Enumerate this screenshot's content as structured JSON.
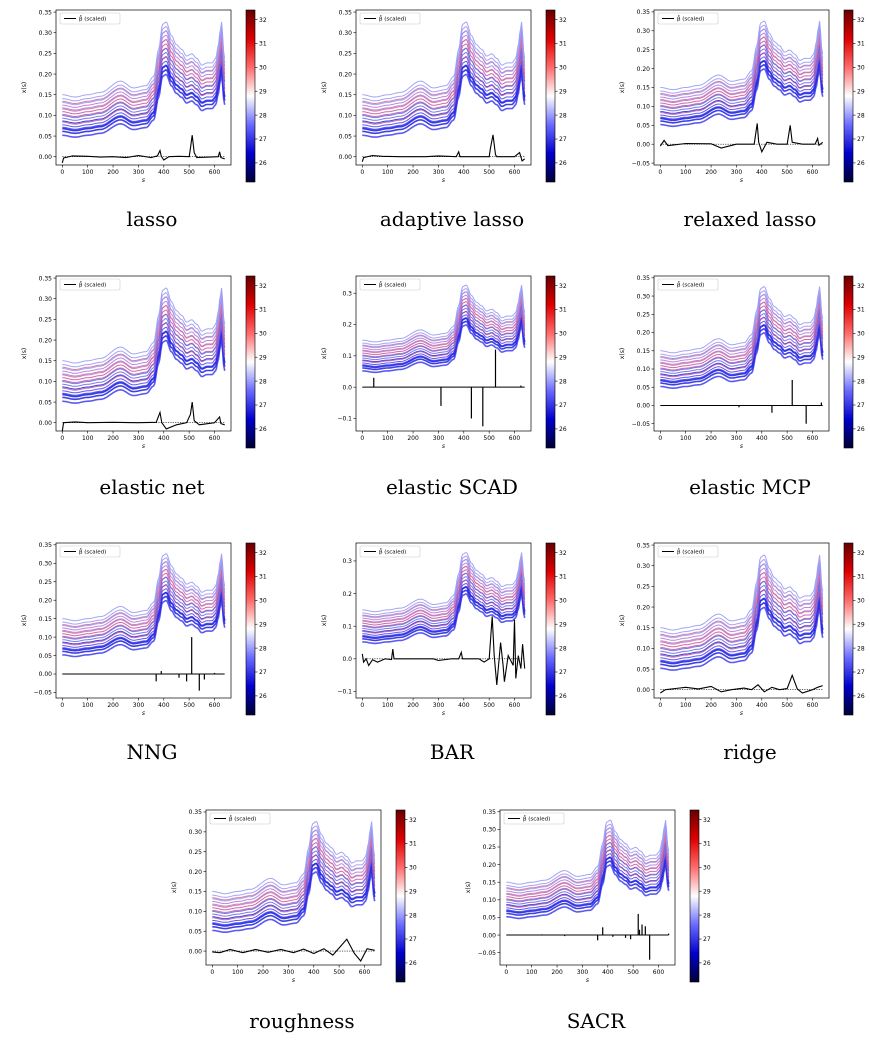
{
  "figure": {
    "colorbar": {
      "ticks": [
        26,
        27,
        28,
        29,
        30,
        31,
        32
      ],
      "min": 25.2,
      "max": 32.4,
      "colors": [
        "#000033",
        "#0000cc",
        "#6b6bff",
        "#ffffff",
        "#ff6b6b",
        "#dd0000",
        "#660000"
      ]
    },
    "common": {
      "xlabel": "s",
      "ylabel": "x(s)",
      "legend": "β̂ (scaled)",
      "xticks": [
        0,
        100,
        200,
        300,
        400,
        500,
        600
      ],
      "xlim": [
        -25,
        665
      ]
    }
  },
  "chart_data": [
    {
      "type": "line",
      "name": "lasso",
      "ylim": [
        -0.02,
        0.355
      ],
      "yticks": [
        0.0,
        0.05,
        0.1,
        0.15,
        0.2,
        0.25,
        0.3,
        0.35
      ],
      "ytick_labels": [
        "0.00",
        "0.05",
        "0.10",
        "0.15",
        "0.20",
        "0.25",
        "0.30",
        "0.35"
      ],
      "beta_style": "smooth",
      "beta": [
        [
          0,
          -0.015
        ],
        [
          5,
          -0.003
        ],
        [
          40,
          0.002
        ],
        [
          100,
          0.001
        ],
        [
          150,
          -0.001
        ],
        [
          200,
          0.0
        ],
        [
          250,
          -0.002
        ],
        [
          300,
          0.003
        ],
        [
          350,
          -0.002
        ],
        [
          375,
          0.002
        ],
        [
          385,
          0.015
        ],
        [
          390,
          0.001
        ],
        [
          400,
          -0.008
        ],
        [
          420,
          0.0
        ],
        [
          460,
          0.001
        ],
        [
          500,
          0.0
        ],
        [
          505,
          0.02
        ],
        [
          512,
          0.052
        ],
        [
          520,
          0.01
        ],
        [
          530,
          -0.002
        ],
        [
          580,
          -0.001
        ],
        [
          615,
          0.0
        ],
        [
          620,
          0.012
        ],
        [
          625,
          -0.002
        ],
        [
          640,
          -0.005
        ]
      ]
    },
    {
      "type": "line",
      "name": "adaptive lasso",
      "ylim": [
        -0.02,
        0.355
      ],
      "yticks": [
        0.0,
        0.05,
        0.1,
        0.15,
        0.2,
        0.25,
        0.3,
        0.35
      ],
      "ytick_labels": [
        "0.00",
        "0.05",
        "0.10",
        "0.15",
        "0.20",
        "0.25",
        "0.30",
        "0.35"
      ],
      "beta_style": "smooth",
      "beta": [
        [
          0,
          -0.012
        ],
        [
          5,
          -0.002
        ],
        [
          40,
          0.003
        ],
        [
          80,
          0.001
        ],
        [
          150,
          0.0
        ],
        [
          250,
          0.0
        ],
        [
          300,
          0.002
        ],
        [
          370,
          0.0
        ],
        [
          380,
          0.012
        ],
        [
          385,
          0.0
        ],
        [
          420,
          0.0
        ],
        [
          500,
          0.0
        ],
        [
          505,
          0.02
        ],
        [
          515,
          0.053
        ],
        [
          525,
          0.005
        ],
        [
          530,
          0.0
        ],
        [
          600,
          0.0
        ],
        [
          620,
          0.01
        ],
        [
          630,
          -0.01
        ],
        [
          640,
          -0.005
        ]
      ]
    },
    {
      "type": "line",
      "name": "relaxed lasso",
      "ylim": [
        -0.055,
        0.355
      ],
      "yticks": [
        -0.05,
        0.0,
        0.05,
        0.1,
        0.15,
        0.2,
        0.25,
        0.3,
        0.35
      ],
      "ytick_labels": [
        "−0.05",
        "0.00",
        "0.05",
        "0.10",
        "0.15",
        "0.20",
        "0.25",
        "0.30",
        "0.35"
      ],
      "beta_style": "smooth",
      "beta": [
        [
          0,
          -0.005
        ],
        [
          15,
          0.01
        ],
        [
          30,
          -0.004
        ],
        [
          100,
          0.002
        ],
        [
          200,
          0.001
        ],
        [
          240,
          -0.01
        ],
        [
          300,
          0.0
        ],
        [
          370,
          0.0
        ],
        [
          382,
          0.055
        ],
        [
          388,
          0.005
        ],
        [
          400,
          -0.02
        ],
        [
          420,
          0.005
        ],
        [
          460,
          0.0
        ],
        [
          500,
          0.0
        ],
        [
          505,
          0.02
        ],
        [
          512,
          0.05
        ],
        [
          520,
          0.005
        ],
        [
          560,
          0.0
        ],
        [
          610,
          0.0
        ],
        [
          620,
          0.015
        ],
        [
          625,
          -0.003
        ],
        [
          640,
          0.005
        ]
      ]
    },
    {
      "type": "line",
      "name": "elastic net",
      "ylim": [
        -0.02,
        0.355
      ],
      "yticks": [
        0.0,
        0.05,
        0.1,
        0.15,
        0.2,
        0.25,
        0.3,
        0.35
      ],
      "ytick_labels": [
        "0.00",
        "0.05",
        "0.10",
        "0.15",
        "0.20",
        "0.25",
        "0.30",
        "0.35"
      ],
      "beta_style": "smooth",
      "beta": [
        [
          0,
          -0.02
        ],
        [
          5,
          0.0
        ],
        [
          50,
          0.002
        ],
        [
          100,
          0.0
        ],
        [
          200,
          0.001
        ],
        [
          300,
          0.0
        ],
        [
          370,
          0.001
        ],
        [
          385,
          0.025
        ],
        [
          392,
          0.0
        ],
        [
          410,
          -0.015
        ],
        [
          450,
          -0.005
        ],
        [
          490,
          0.0
        ],
        [
          505,
          0.02
        ],
        [
          512,
          0.05
        ],
        [
          520,
          0.005
        ],
        [
          540,
          -0.005
        ],
        [
          600,
          0.0
        ],
        [
          620,
          0.014
        ],
        [
          625,
          -0.002
        ],
        [
          640,
          -0.005
        ]
      ]
    },
    {
      "type": "line",
      "name": "elastic SCAD",
      "ylim": [
        -0.14,
        0.355
      ],
      "yticks": [
        -0.1,
        0.0,
        0.1,
        0.2,
        0.3
      ],
      "ytick_labels": [
        "−0.1",
        "0.0",
        "0.1",
        "0.2",
        "0.3"
      ],
      "beta_style": "spikes",
      "beta": [
        [
          45,
          0.03
        ],
        [
          310,
          -0.06
        ],
        [
          430,
          -0.1
        ],
        [
          475,
          -0.125
        ],
        [
          525,
          0.12
        ],
        [
          625,
          0.005
        ]
      ]
    },
    {
      "type": "line",
      "name": "elastic MCP",
      "ylim": [
        -0.07,
        0.355
      ],
      "yticks": [
        -0.05,
        0.0,
        0.05,
        0.1,
        0.15,
        0.2,
        0.25,
        0.3,
        0.35
      ],
      "ytick_labels": [
        "−0.05",
        "0.00",
        "0.05",
        "0.10",
        "0.15",
        "0.20",
        "0.25",
        "0.30",
        "0.35"
      ],
      "beta_style": "spikes",
      "beta": [
        [
          310,
          -0.005
        ],
        [
          440,
          -0.02
        ],
        [
          520,
          0.07
        ],
        [
          575,
          -0.05
        ],
        [
          635,
          0.008
        ]
      ]
    },
    {
      "type": "line",
      "name": "NNG",
      "ylim": [
        -0.065,
        0.355
      ],
      "yticks": [
        -0.05,
        0.0,
        0.05,
        0.1,
        0.15,
        0.2,
        0.25,
        0.3,
        0.35
      ],
      "ytick_labels": [
        "−0.05",
        "0.00",
        "0.05",
        "0.10",
        "0.15",
        "0.20",
        "0.25",
        "0.30",
        "0.35"
      ],
      "beta_style": "spikes",
      "beta": [
        [
          370,
          -0.02
        ],
        [
          390,
          0.008
        ],
        [
          460,
          -0.01
        ],
        [
          490,
          -0.02
        ],
        [
          510,
          0.1
        ],
        [
          540,
          -0.045
        ],
        [
          560,
          -0.015
        ],
        [
          600,
          0.003
        ]
      ]
    },
    {
      "type": "line",
      "name": "BAR",
      "ylim": [
        -0.12,
        0.355
      ],
      "yticks": [
        -0.1,
        0.0,
        0.1,
        0.2,
        0.3
      ],
      "ytick_labels": [
        "−0.1",
        "0.0",
        "0.1",
        "0.2",
        "0.3"
      ],
      "beta_style": "smooth",
      "beta": [
        [
          0,
          0.015
        ],
        [
          5,
          -0.01
        ],
        [
          15,
          0.0
        ],
        [
          25,
          -0.02
        ],
        [
          40,
          -0.003
        ],
        [
          60,
          -0.01
        ],
        [
          90,
          0.0
        ],
        [
          115,
          -0.002
        ],
        [
          120,
          0.03
        ],
        [
          125,
          0.0
        ],
        [
          200,
          0.0
        ],
        [
          280,
          0.0
        ],
        [
          300,
          -0.005
        ],
        [
          350,
          0.0
        ],
        [
          380,
          0.0
        ],
        [
          390,
          0.02
        ],
        [
          395,
          0.0
        ],
        [
          460,
          0.0
        ],
        [
          480,
          -0.01
        ],
        [
          500,
          0.0
        ],
        [
          512,
          0.13
        ],
        [
          520,
          0.01
        ],
        [
          530,
          -0.08
        ],
        [
          545,
          0.05
        ],
        [
          555,
          -0.02
        ],
        [
          560,
          -0.07
        ],
        [
          575,
          0.01
        ],
        [
          595,
          -0.02
        ],
        [
          600,
          0.12
        ],
        [
          605,
          -0.06
        ],
        [
          615,
          0.01
        ],
        [
          625,
          -0.03
        ],
        [
          632,
          0.045
        ],
        [
          640,
          -0.03
        ]
      ]
    },
    {
      "type": "line",
      "name": "ridge",
      "ylim": [
        -0.02,
        0.355
      ],
      "yticks": [
        0.0,
        0.05,
        0.1,
        0.15,
        0.2,
        0.25,
        0.3,
        0.35
      ],
      "ytick_labels": [
        "0.00",
        "0.05",
        "0.10",
        "0.15",
        "0.20",
        "0.25",
        "0.30",
        "0.35"
      ],
      "beta_style": "smooth",
      "beta": [
        [
          0,
          -0.008
        ],
        [
          20,
          0.0
        ],
        [
          60,
          0.003
        ],
        [
          100,
          0.006
        ],
        [
          150,
          0.002
        ],
        [
          200,
          0.008
        ],
        [
          240,
          -0.005
        ],
        [
          280,
          0.0
        ],
        [
          330,
          0.004
        ],
        [
          360,
          0.0
        ],
        [
          385,
          0.012
        ],
        [
          410,
          -0.005
        ],
        [
          440,
          0.006
        ],
        [
          470,
          0.0
        ],
        [
          500,
          0.003
        ],
        [
          520,
          0.035
        ],
        [
          540,
          0.002
        ],
        [
          560,
          -0.008
        ],
        [
          600,
          0.0
        ],
        [
          620,
          0.006
        ],
        [
          640,
          0.01
        ]
      ]
    },
    {
      "type": "line",
      "name": "roughness",
      "ylim": [
        -0.035,
        0.355
      ],
      "yticks": [
        0.0,
        0.05,
        0.1,
        0.15,
        0.2,
        0.25,
        0.3,
        0.35
      ],
      "ytick_labels": [
        "0.00",
        "0.05",
        "0.10",
        "0.15",
        "0.20",
        "0.25",
        "0.30",
        "0.35"
      ],
      "beta_style": "smooth",
      "beta": [
        [
          0,
          -0.002
        ],
        [
          30,
          -0.004
        ],
        [
          70,
          0.004
        ],
        [
          120,
          -0.004
        ],
        [
          170,
          0.004
        ],
        [
          220,
          -0.003
        ],
        [
          270,
          0.004
        ],
        [
          320,
          -0.004
        ],
        [
          360,
          0.005
        ],
        [
          400,
          -0.006
        ],
        [
          440,
          0.006
        ],
        [
          475,
          -0.01
        ],
        [
          500,
          0.008
        ],
        [
          530,
          0.03
        ],
        [
          560,
          -0.006
        ],
        [
          585,
          -0.025
        ],
        [
          610,
          0.006
        ],
        [
          640,
          0.002
        ]
      ]
    },
    {
      "type": "line",
      "name": "SACR",
      "ylim": [
        -0.085,
        0.355
      ],
      "yticks": [
        -0.05,
        0.0,
        0.05,
        0.1,
        0.15,
        0.2,
        0.25,
        0.3,
        0.35
      ],
      "ytick_labels": [
        "−0.05",
        "0.00",
        "0.05",
        "0.10",
        "0.15",
        "0.20",
        "0.25",
        "0.30",
        "0.35"
      ],
      "beta_style": "spikes",
      "beta": [
        [
          140,
          0.002
        ],
        [
          230,
          -0.003
        ],
        [
          360,
          -0.015
        ],
        [
          380,
          0.022
        ],
        [
          420,
          -0.005
        ],
        [
          470,
          -0.008
        ],
        [
          490,
          -0.012
        ],
        [
          520,
          0.06
        ],
        [
          525,
          0.015
        ],
        [
          535,
          0.03
        ],
        [
          548,
          0.025
        ],
        [
          565,
          -0.07
        ],
        [
          640,
          0.004
        ]
      ]
    }
  ],
  "captions": [
    "lasso",
    "adaptive lasso",
    "relaxed lasso",
    "elastic net",
    "elastic SCAD",
    "elastic MCP",
    "NNG",
    "BAR",
    "ridge",
    "roughness",
    "SACR"
  ]
}
